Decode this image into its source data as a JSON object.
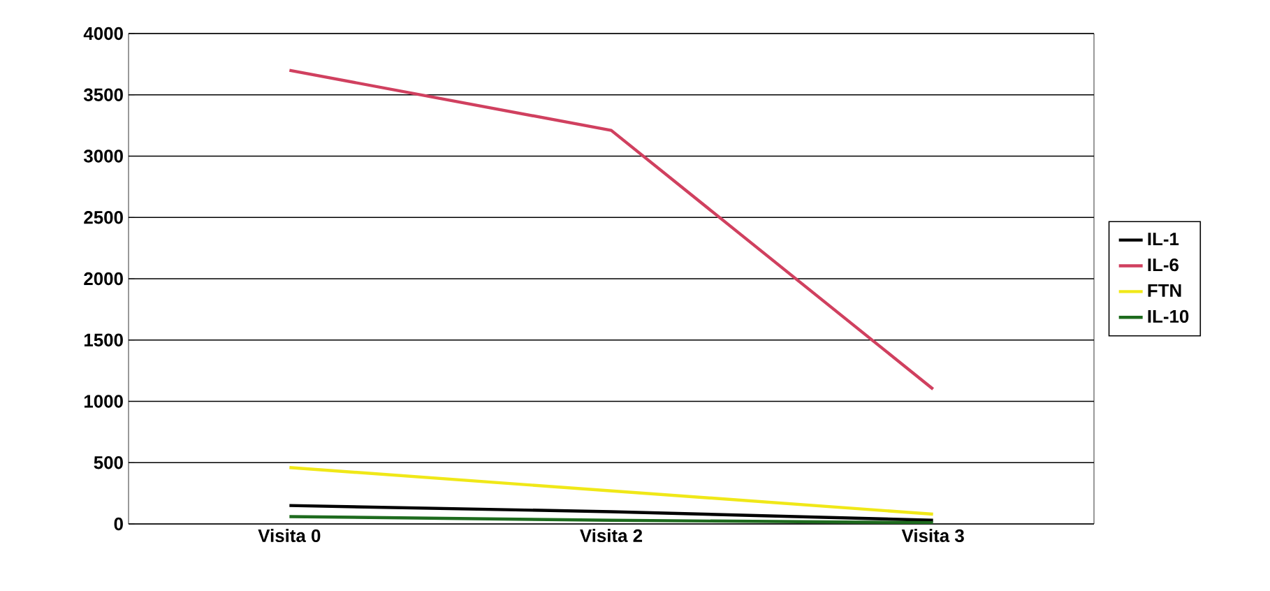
{
  "chart_data": {
    "type": "line",
    "categories": [
      "Visita 0",
      "Visita 2",
      "Visita 3"
    ],
    "series": [
      {
        "name": "IL-1",
        "color": "#000000",
        "values": [
          150,
          100,
          30
        ]
      },
      {
        "name": "IL-6",
        "color": "#d0405f",
        "values": [
          3700,
          3210,
          1100
        ]
      },
      {
        "name": "FTN",
        "color": "#f0e818",
        "values": [
          460,
          270,
          80
        ]
      },
      {
        "name": "IL-10",
        "color": "#1e6b1e",
        "values": [
          60,
          30,
          10
        ]
      }
    ],
    "ylim": [
      0,
      4000
    ],
    "yticks": [
      0,
      500,
      1000,
      1500,
      2000,
      2500,
      3000,
      3500,
      4000
    ],
    "grid": "y",
    "legend": "right",
    "marker": "none",
    "line_style": "solid"
  }
}
